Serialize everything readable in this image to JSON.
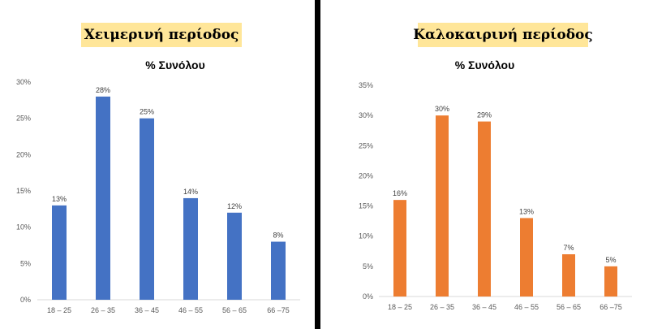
{
  "colors": {
    "winter": "#4472c4",
    "summer": "#ed7d31",
    "divider": "#000000",
    "banner": "#ffe699"
  },
  "chart_data": [
    {
      "type": "bar",
      "banner": "Χειμερινή περίοδος",
      "title": "% Συνόλου",
      "categories": [
        "18 – 25",
        "26 – 35",
        "36 – 45",
        "46 – 55",
        "56 – 65",
        "66 –75"
      ],
      "values": [
        13,
        28,
        25,
        14,
        12,
        8
      ],
      "data_labels": [
        "13%",
        "28%",
        "25%",
        "14%",
        "12%",
        "8%"
      ],
      "yticks": [
        "0%",
        "5%",
        "10%",
        "15%",
        "20%",
        "25%",
        "30%"
      ],
      "ylim": [
        0,
        30
      ],
      "color": "#4472c4",
      "grid": false,
      "legend": "none"
    },
    {
      "type": "bar",
      "banner": "Καλοκαιρινή περίοδος",
      "title": "% Συνόλου",
      "categories": [
        "18 – 25",
        "26 – 35",
        "36 – 45",
        "46 – 55",
        "56 – 65",
        "66 –75"
      ],
      "values": [
        16,
        30,
        29,
        13,
        7,
        5
      ],
      "data_labels": [
        "16%",
        "30%",
        "29%",
        "13%",
        "7%",
        "5%"
      ],
      "yticks": [
        "0%",
        "5%",
        "10%",
        "15%",
        "20%",
        "25%",
        "30%",
        "35%"
      ],
      "ylim": [
        0,
        35
      ],
      "color": "#ed7d31",
      "grid": false,
      "legend": "none"
    }
  ]
}
